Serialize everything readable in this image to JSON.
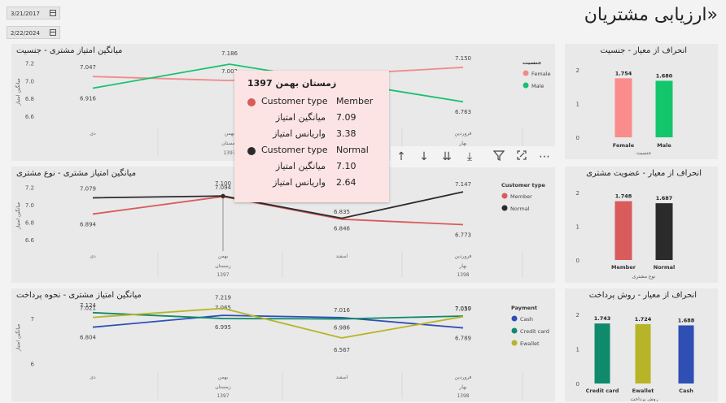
{
  "page": {
    "title": "«ارزیابی مشتریان"
  },
  "filters": {
    "start_date": "3/21/2017",
    "end_date": "2/22/2024"
  },
  "x_axis": {
    "months": [
      "دی",
      "بهمن",
      "اسفند",
      "فروردین"
    ],
    "seasons": [
      "",
      "زمستان",
      "",
      "بهار"
    ],
    "years": [
      "1397",
      "1398"
    ]
  },
  "icons": {
    "calendar": "calendar-icon"
  },
  "chart_data": [
    {
      "type": "line",
      "title": "میانگین امتیاز مشتری - جنسیت",
      "ylabel": "میانگین امتیاز",
      "ylim": [
        6.5,
        7.25
      ],
      "yticks": [
        6.6,
        6.8,
        7.0,
        7.2
      ],
      "legend_title": "جنسیت",
      "legend_position": "right",
      "series": [
        {
          "name": "Female",
          "color": "#f28a8a",
          "values": [
            7.047,
            7.002,
            null,
            7.15
          ],
          "labels": [
            "7.047",
            "7.002",
            "",
            "7.150"
          ]
        },
        {
          "name": "Male",
          "color": "#17c26e",
          "values": [
            6.916,
            7.186,
            null,
            6.763
          ],
          "labels": [
            "6.916",
            "7.186",
            "",
            "6.763"
          ]
        }
      ]
    },
    {
      "type": "line",
      "title": "میانگین امتیاز مشتری - نوع مشتری",
      "ylabel": "میانگین امتیاز",
      "ylim": [
        6.5,
        7.25
      ],
      "yticks": [
        6.6,
        6.8,
        7.0,
        7.2
      ],
      "legend_title": "Customer type",
      "legend_position": "right",
      "series": [
        {
          "name": "Member",
          "color": "#d95b5b",
          "values": [
            6.894,
            7.094,
            6.835,
            6.773
          ],
          "labels": [
            "6.894",
            "7.094",
            "6.835",
            "6.773"
          ]
        },
        {
          "name": "Normal",
          "color": "#2b2b2b",
          "values": [
            7.079,
            7.1,
            6.846,
            7.147
          ],
          "labels": [
            "7.079",
            "7.100",
            "6.846",
            "7.147"
          ]
        }
      ]
    },
    {
      "type": "line",
      "title": "میانگین امتیاز مشتری - نحوه پرداخت",
      "ylabel": "میانگین امتیاز",
      "ylim": [
        5.85,
        7.3
      ],
      "yticks": [
        6,
        7
      ],
      "legend_title": "Payment",
      "legend_position": "right",
      "series": [
        {
          "name": "Cash",
          "color": "#2f4fb5",
          "values": [
            6.804,
            7.065,
            7.016,
            6.789
          ],
          "labels": [
            "6.804",
            "7.065",
            "7.016",
            "6.789"
          ]
        },
        {
          "name": "Credit card",
          "color": "#0f8a6b",
          "values": [
            7.124,
            6.995,
            6.986,
            7.05
          ],
          "labels": [
            "7.124",
            "6.995",
            "6.986",
            "7.050"
          ]
        },
        {
          "name": "Ewallet",
          "color": "#b8b428",
          "values": [
            7.021,
            7.219,
            6.567,
            7.037
          ],
          "labels": [
            "7.021",
            "7.219",
            "6.567",
            "7.037"
          ]
        }
      ]
    },
    {
      "type": "bar",
      "title": "انحراف از معیار - جنسیت",
      "xlabel": "جنسیت",
      "ylim": [
        0,
        2.1
      ],
      "yticks": [
        0,
        1,
        2
      ],
      "categories": [
        "Female",
        "Male"
      ],
      "values": [
        1.754,
        1.68
      ],
      "labels": [
        "1.754",
        "1.680"
      ],
      "colors": [
        "#fb8c8c",
        "#13c66c"
      ]
    },
    {
      "type": "bar",
      "title": "انحراف از معیار - عضویت مشتری",
      "xlabel": "نوع مشتری",
      "ylim": [
        0,
        2.1
      ],
      "yticks": [
        0,
        1,
        2
      ],
      "categories": [
        "Member",
        "Normal"
      ],
      "values": [
        1.748,
        1.687
      ],
      "labels": [
        "1.748",
        "1.687"
      ],
      "colors": [
        "#d95b5b",
        "#2b2b2b"
      ]
    },
    {
      "type": "bar",
      "title": "انحراف از معیار - روش پرداخت",
      "xlabel": "روش پرداخت",
      "ylim": [
        0,
        2.1
      ],
      "yticks": [
        0,
        1,
        2
      ],
      "categories": [
        "Credit card",
        "Ewallet",
        "Cash"
      ],
      "values": [
        1.743,
        1.724,
        1.688
      ],
      "labels": [
        "1.743",
        "1.724",
        "1.688"
      ],
      "colors": [
        "#0f8a6b",
        "#b8b428",
        "#2f4fb5"
      ]
    }
  ],
  "tooltip": {
    "title": "زمستان بهمن 1397",
    "rows": [
      {
        "dot_color": "#d95b5b",
        "label": "Customer type",
        "value": "Member"
      },
      {
        "label": "میانگین امتیاز",
        "value": "7.09"
      },
      {
        "label": "واریانس امتیاز",
        "value": "3.38"
      },
      {
        "dot_color": "#2b2b2b",
        "label": "Customer type",
        "value": "Normal"
      },
      {
        "label": "میانگین امتیاز",
        "value": "7.10"
      },
      {
        "label": "واریانس امتیاز",
        "value": "2.64"
      }
    ]
  },
  "toolbar": {
    "icons": [
      "arrow-up-icon",
      "arrow-down-icon",
      "double-arrow-down-icon",
      "expand-hierarchy-icon",
      "filter-icon",
      "focus-mode-icon",
      "more-options-icon"
    ]
  }
}
